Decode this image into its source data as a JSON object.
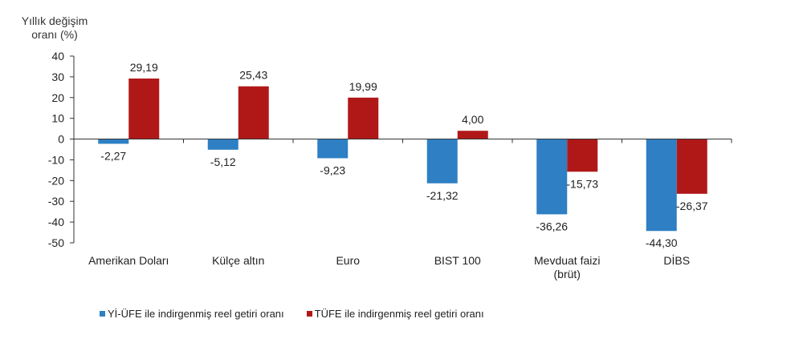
{
  "chart_data": {
    "type": "bar",
    "title": "",
    "ylabel": "Yıllık değişim oranı (%)",
    "ylabel_lines": [
      "Yıllık değişim",
      "oranı (%)"
    ],
    "xlabel": "",
    "ylim": [
      -50,
      40
    ],
    "yticks": [
      40,
      30,
      20,
      10,
      0,
      -10,
      -20,
      -30,
      -40,
      -50
    ],
    "grid": false,
    "legend_position": "bottom",
    "categories": [
      [
        "Amerikan Doları"
      ],
      [
        "Külçe altın"
      ],
      [
        "Euro"
      ],
      [
        "BIST 100"
      ],
      [
        "Mevduat faizi",
        "(brüt)"
      ],
      [
        "DİBS"
      ]
    ],
    "series": [
      {
        "name": "Yİ-ÜFE ile indirgenmiş reel getiri oranı",
        "color": "#2e7fc4",
        "values": [
          -2.27,
          -5.12,
          -9.23,
          -21.32,
          -36.26,
          -44.3
        ],
        "labels": [
          "-2,27",
          "-5,12",
          "-9,23",
          "-21,32",
          "-36,26",
          "-44,30"
        ]
      },
      {
        "name": "TÜFE ile indirgenmiş reel getiri oranı",
        "color": "#b01818",
        "values": [
          29.19,
          25.43,
          19.99,
          4.0,
          -15.73,
          -26.37
        ],
        "labels": [
          "29,19",
          "25,43",
          "19,99",
          "4,00",
          "-15,73",
          "-26,37"
        ]
      }
    ]
  }
}
